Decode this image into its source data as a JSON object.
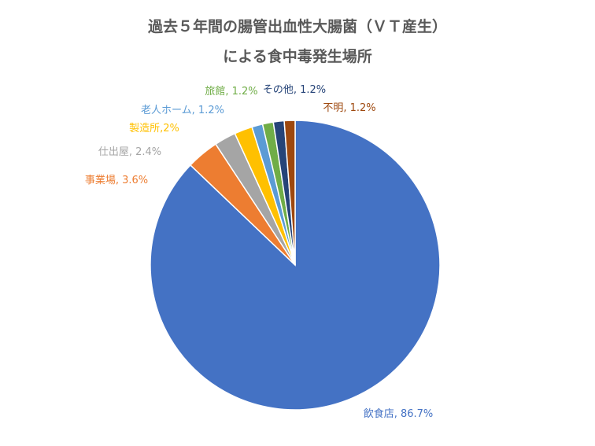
{
  "chart_data": {
    "type": "pie",
    "title_lines": [
      "過去５年間の腸管出血性大腸菌（ＶＴ産生）",
      "による食中毒発生場所"
    ],
    "slices": [
      {
        "category": "飲食店",
        "value": 86.7,
        "label": "飲食店, 86.7%",
        "color": "#4472C4"
      },
      {
        "category": "事業場",
        "value": 3.6,
        "label": "事業場, 3.6%",
        "color": "#ED7D31"
      },
      {
        "category": "仕出屋",
        "value": 2.4,
        "label": "仕出屋, 2.4%",
        "color": "#A5A5A5"
      },
      {
        "category": "製造所",
        "value": 2.0,
        "label": "製造所,2%",
        "color": "#FFC000"
      },
      {
        "category": "老人ホーム",
        "value": 1.2,
        "label": "老人ホーム, 1.2%",
        "color": "#5B9BD5"
      },
      {
        "category": "旅館",
        "value": 1.2,
        "label": "旅館, 1.2%",
        "color": "#70AD47"
      },
      {
        "category": "その他",
        "value": 1.2,
        "label": "その他, 1.2%",
        "color": "#264478"
      },
      {
        "category": "不明",
        "value": 1.2,
        "label": "不明, 1.2%",
        "color": "#9E480E"
      }
    ],
    "start_angle_deg": 0,
    "direction": "clockwise",
    "legend": "none",
    "grid": false
  }
}
